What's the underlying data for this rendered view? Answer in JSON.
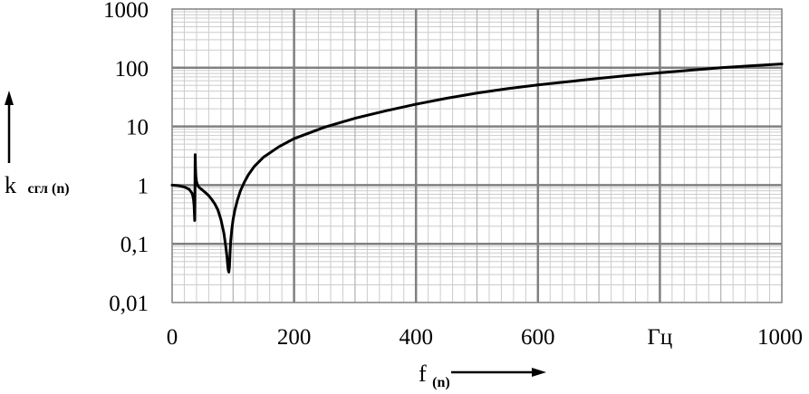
{
  "chart_data": {
    "type": "line",
    "title": "",
    "xlabel": "f",
    "xlabel_sub": "(n)",
    "ylabel": "k",
    "ylabel_sub": "сгл (n)",
    "x_unit_label": "Гц",
    "xlim": [
      0,
      1000
    ],
    "ylim": [
      0.01,
      1000
    ],
    "y_scale": "log",
    "grid": true,
    "x_ticks": [
      {
        "value": 0,
        "label": "0"
      },
      {
        "value": 200,
        "label": "200"
      },
      {
        "value": 400,
        "label": "400"
      },
      {
        "value": 600,
        "label": "600"
      },
      {
        "value": 800,
        "label": "Гц"
      },
      {
        "value": 1000,
        "label": "1000"
      }
    ],
    "y_ticks": [
      {
        "value": 0.01,
        "label": "0,01"
      },
      {
        "value": 0.1,
        "label": "0,1"
      },
      {
        "value": 1,
        "label": "1"
      },
      {
        "value": 10,
        "label": "10"
      },
      {
        "value": 100,
        "label": "100"
      },
      {
        "value": 1000,
        "label": "1000"
      }
    ],
    "series": [
      {
        "x": [
          0,
          10,
          20,
          28,
          33,
          35,
          36,
          36.5,
          37,
          37.4,
          37.8,
          38.3,
          39,
          40,
          42,
          45,
          50,
          55,
          60,
          65,
          70,
          75,
          80,
          85,
          88,
          90,
          91,
          92,
          93,
          94,
          95,
          96,
          98,
          100,
          103,
          107,
          112,
          118,
          125,
          135,
          150,
          175,
          200,
          250,
          300,
          350,
          400,
          450,
          500,
          550,
          600,
          650,
          700,
          750,
          800,
          850,
          900,
          950,
          1000
        ],
        "y": [
          1,
          0.98,
          0.93,
          0.85,
          0.72,
          0.58,
          0.45,
          0.34,
          0.25,
          0.7,
          3.3,
          2.0,
          1.4,
          1.15,
          0.98,
          0.9,
          0.82,
          0.74,
          0.66,
          0.57,
          0.48,
          0.38,
          0.26,
          0.15,
          0.09,
          0.06,
          0.045,
          0.036,
          0.033,
          0.04,
          0.07,
          0.11,
          0.18,
          0.26,
          0.38,
          0.55,
          0.8,
          1.1,
          1.5,
          2.1,
          3.0,
          4.5,
          6.2,
          9.7,
          13.8,
          18.4,
          23.9,
          30.2,
          37,
          44,
          51,
          58,
          66,
          74,
          82,
          91,
          100,
          108,
          116
        ]
      }
    ]
  }
}
